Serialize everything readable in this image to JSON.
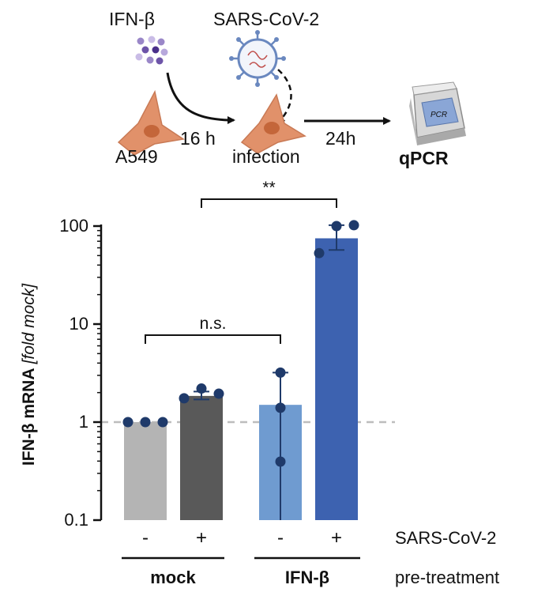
{
  "schematic": {
    "ifn_label": "IFN-β",
    "virus_label": "SARS-CoV-2",
    "cell_label": "A549",
    "time1_label": "16 h",
    "infection_label": "infection",
    "time2_label": "24h",
    "readout_label": "qPCR",
    "device_label": "PCR"
  },
  "colors": {
    "mock_minus": "#b4b4b4",
    "mock_plus": "#595959",
    "ifn_minus": "#6f9bd0",
    "ifn_plus": "#3d62b0",
    "points": "#1f3a6a",
    "reference_line": "#bdbdbd"
  },
  "chart_data": {
    "type": "bar",
    "y_scale": "log",
    "ylabel_main": "IFN-β mRNA ",
    "ylabel_italic": "[fold mock]",
    "ylim": [
      0.1,
      100
    ],
    "yticks": [
      {
        "value": 0.1,
        "label": "0.1"
      },
      {
        "value": 1,
        "label": "1"
      },
      {
        "value": 10,
        "label": "10"
      },
      {
        "value": 100,
        "label": "100"
      }
    ],
    "reference_value": 1,
    "bars": [
      {
        "pretreatment": "mock",
        "virus": "-",
        "mean": 1.0,
        "sd_low": 1.0,
        "sd_high": 1.0,
        "points": [
          1.0,
          1.0,
          1.0
        ]
      },
      {
        "pretreatment": "mock",
        "virus": "+",
        "mean": 1.85,
        "sd_low": 1.7,
        "sd_high": 2.05,
        "points": [
          1.75,
          2.2,
          1.95
        ]
      },
      {
        "pretreatment": "IFN-β",
        "virus": "-",
        "mean": 1.5,
        "sd_low": 0.1,
        "sd_high": 3.2,
        "points": [
          0.3,
          1.4,
          3.2
        ]
      },
      {
        "pretreatment": "IFN-β",
        "virus": "+",
        "mean": 75,
        "sd_low": 57,
        "sd_high": 102,
        "points": [
          53,
          100,
          102
        ]
      }
    ],
    "x_row_label": "SARS-CoV-2",
    "group_labels": [
      "mock",
      "IFN-β"
    ],
    "group_row_label": "pre-treatment",
    "significance": [
      {
        "bars": [
          0,
          2
        ],
        "label": "n.s."
      },
      {
        "bars": [
          1,
          3
        ],
        "label": "**"
      }
    ]
  }
}
